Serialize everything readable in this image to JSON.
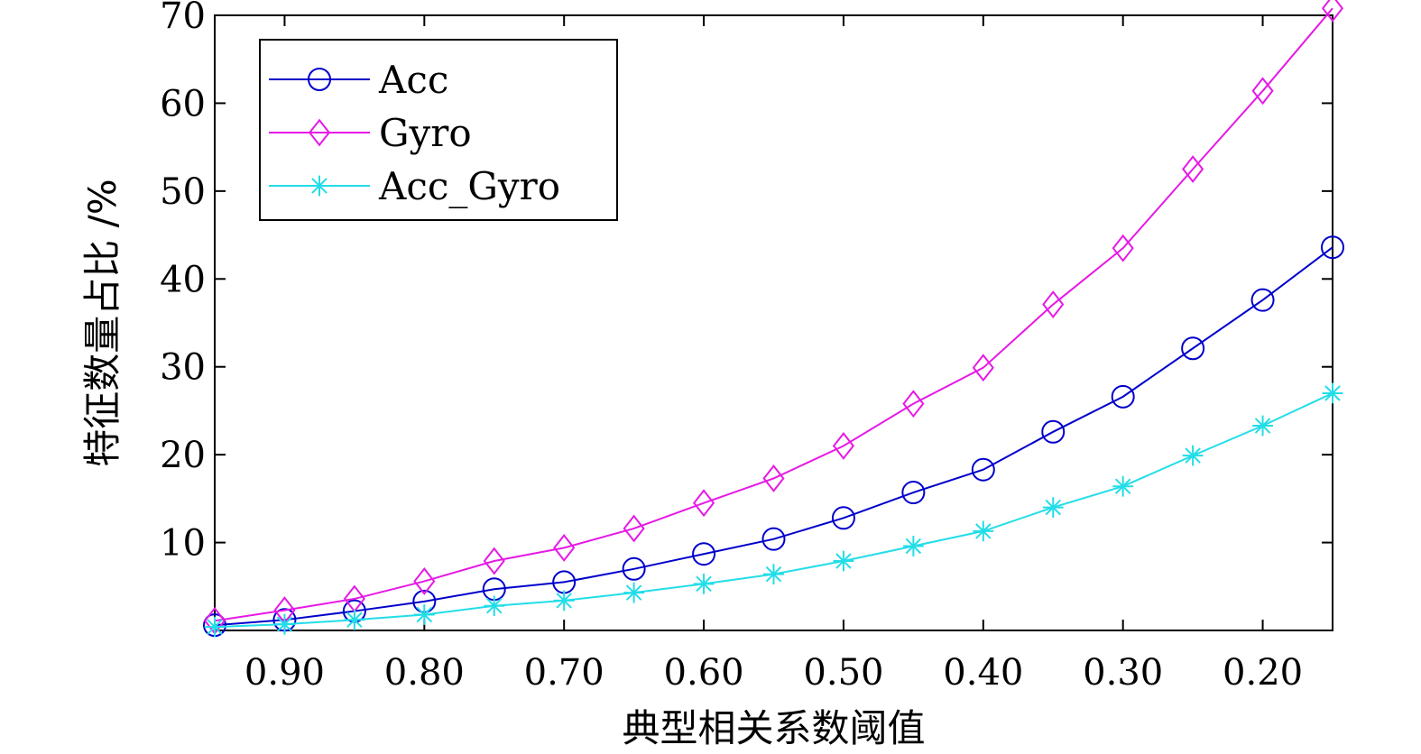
{
  "chart_data": {
    "type": "line",
    "title": "",
    "xlabel": "典型相关系数阈值",
    "ylabel": "特征数量占比 /%",
    "x": [
      0.95,
      0.9,
      0.85,
      0.8,
      0.75,
      0.7,
      0.65,
      0.6,
      0.55,
      0.5,
      0.45,
      0.4,
      0.35,
      0.3,
      0.25,
      0.2,
      0.15
    ],
    "x_reversed": true,
    "xlim": [
      0.95,
      0.15
    ],
    "ylim": [
      0,
      70
    ],
    "x_ticks": [
      "0.90",
      "0.80",
      "0.70",
      "0.60",
      "0.50",
      "0.40",
      "0.30",
      "0.20"
    ],
    "x_tick_values": [
      0.9,
      0.8,
      0.7,
      0.6,
      0.5,
      0.4,
      0.3,
      0.2
    ],
    "y_ticks": [
      "10",
      "20",
      "30",
      "40",
      "50",
      "60",
      "70"
    ],
    "y_tick_values": [
      10,
      20,
      30,
      40,
      50,
      60,
      70
    ],
    "grid": false,
    "legend_position": "top-left",
    "series": [
      {
        "name": "Acc",
        "color": "#0000cc",
        "marker": "circle",
        "values": [
          0.6,
          1.2,
          2.2,
          3.3,
          4.7,
          5.5,
          7.0,
          8.7,
          10.4,
          12.8,
          15.7,
          18.3,
          22.6,
          26.6,
          32.1,
          37.6,
          43.6
        ]
      },
      {
        "name": "Gyro",
        "color": "#e619e6",
        "marker": "diamond",
        "values": [
          1.1,
          2.3,
          3.6,
          5.6,
          7.9,
          9.4,
          11.6,
          14.5,
          17.3,
          21.0,
          25.8,
          29.9,
          37.1,
          43.5,
          52.5,
          61.4,
          70.8
        ]
      },
      {
        "name": "Acc_Gyro",
        "color": "#22dde8",
        "marker": "asterisk",
        "values": [
          0.4,
          0.7,
          1.2,
          1.8,
          2.8,
          3.4,
          4.3,
          5.3,
          6.4,
          7.9,
          9.6,
          11.3,
          14.0,
          16.4,
          19.9,
          23.3,
          27.0
        ]
      }
    ]
  }
}
